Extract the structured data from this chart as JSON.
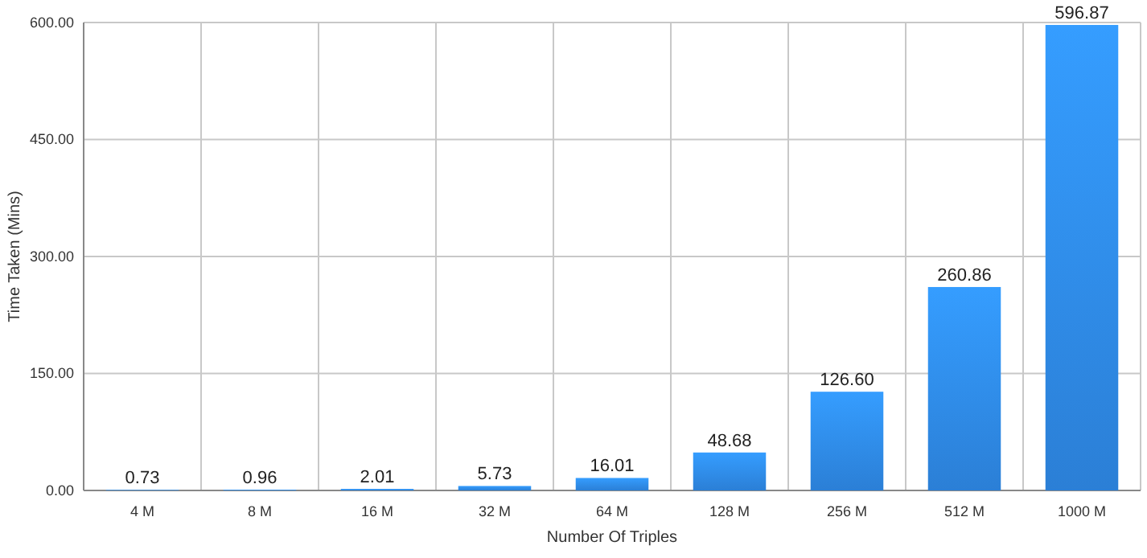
{
  "chart_data": {
    "type": "bar",
    "xlabel": "Number Of Triples",
    "ylabel": "Time Taken (Mins)",
    "categories": [
      "4 M",
      "8 M",
      "16 M",
      "32 M",
      "64 M",
      "128 M",
      "256 M",
      "512 M",
      "1000 M"
    ],
    "values": [
      0.73,
      0.96,
      2.01,
      5.73,
      16.01,
      48.68,
      126.6,
      260.86,
      596.87
    ],
    "value_labels": [
      "0.73",
      "0.96",
      "2.01",
      "5.73",
      "16.01",
      "48.68",
      "126.60",
      "260.86",
      "596.87"
    ],
    "color": "#2b7fd6",
    "ylim": [
      0,
      600
    ],
    "yticks": [
      {
        "value": 0,
        "label": "0.00"
      },
      {
        "value": 150,
        "label": "150.00"
      },
      {
        "value": 300,
        "label": "300.00"
      },
      {
        "value": 450,
        "label": "450.00"
      },
      {
        "value": 600,
        "label": "600.00"
      }
    ],
    "grid": true
  }
}
